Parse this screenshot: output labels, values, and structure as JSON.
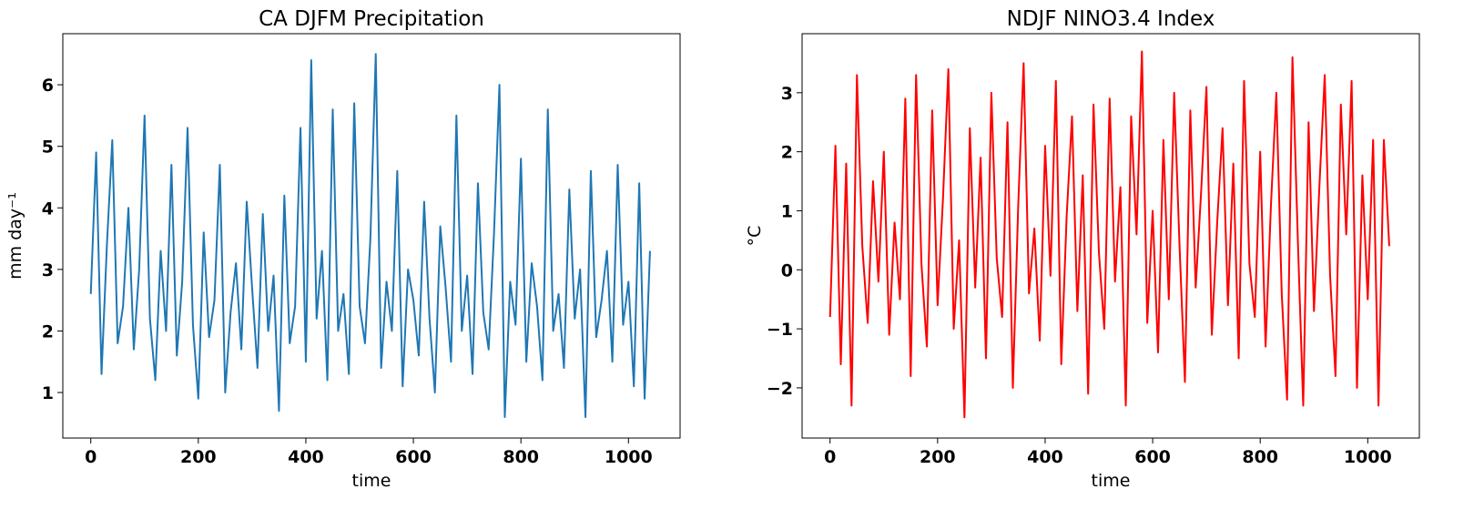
{
  "chart_data": [
    {
      "type": "line",
      "title": "CA DJFM Precipitation",
      "xlabel": "time",
      "ylabel": "mm day⁻¹",
      "x": [
        0,
        10,
        20,
        30,
        40,
        50,
        60,
        70,
        80,
        90,
        100,
        110,
        120,
        130,
        140,
        150,
        160,
        170,
        180,
        190,
        200,
        210,
        220,
        230,
        240,
        250,
        260,
        270,
        280,
        290,
        300,
        310,
        320,
        330,
        340,
        350,
        360,
        370,
        380,
        390,
        400,
        410,
        420,
        430,
        440,
        450,
        460,
        470,
        480,
        490,
        500,
        510,
        520,
        530,
        540,
        550,
        560,
        570,
        580,
        590,
        600,
        610,
        620,
        630,
        640,
        650,
        660,
        670,
        680,
        690,
        700,
        710,
        720,
        730,
        740,
        750,
        760,
        770,
        780,
        790,
        800,
        810,
        820,
        830,
        840,
        850,
        860,
        870,
        880,
        890,
        900,
        910,
        920,
        930,
        940,
        950,
        960,
        970,
        980,
        990,
        1000,
        1010,
        1020,
        1030,
        1040
      ],
      "series": [
        {
          "name": "precipitation",
          "color": "#1f77b4",
          "values": [
            2.6,
            4.9,
            1.3,
            3.4,
            5.1,
            1.8,
            2.4,
            4.0,
            1.7,
            3.0,
            5.5,
            2.2,
            1.2,
            3.3,
            2.0,
            4.7,
            1.6,
            2.8,
            5.3,
            2.1,
            0.9,
            3.6,
            1.9,
            2.5,
            4.7,
            1.0,
            2.3,
            3.1,
            1.7,
            4.1,
            2.7,
            1.4,
            3.9,
            2.0,
            2.9,
            0.7,
            4.2,
            1.8,
            2.4,
            5.3,
            1.5,
            6.4,
            2.2,
            3.3,
            1.2,
            5.6,
            2.0,
            2.6,
            1.3,
            5.7,
            2.4,
            1.8,
            3.5,
            6.5,
            1.4,
            2.8,
            2.0,
            4.6,
            1.1,
            3.0,
            2.5,
            1.6,
            4.1,
            2.2,
            1.0,
            3.7,
            2.7,
            1.5,
            5.5,
            2.0,
            2.9,
            1.3,
            4.4,
            2.3,
            1.7,
            3.6,
            6.0,
            0.6,
            2.8,
            2.1,
            4.8,
            1.5,
            3.1,
            2.4,
            1.2,
            5.6,
            2.0,
            2.6,
            1.4,
            4.3,
            2.2,
            3.0,
            0.6,
            4.6,
            1.9,
            2.5,
            3.3,
            1.5,
            4.7,
            2.1,
            2.8,
            1.1,
            4.4,
            0.9,
            3.3
          ]
        }
      ],
      "xlim": [
        -52,
        1096
      ],
      "xticks": [
        0,
        200,
        400,
        600,
        800,
        1000
      ],
      "ylim": [
        0.26,
        6.83
      ],
      "yticks": [
        1,
        2,
        3,
        4,
        5,
        6
      ]
    },
    {
      "type": "line",
      "title": "NDJF NINO3.4 Index",
      "xlabel": "time",
      "ylabel": "°C",
      "x": [
        0,
        10,
        20,
        30,
        40,
        50,
        60,
        70,
        80,
        90,
        100,
        110,
        120,
        130,
        140,
        150,
        160,
        170,
        180,
        190,
        200,
        210,
        220,
        230,
        240,
        250,
        260,
        270,
        280,
        290,
        300,
        310,
        320,
        330,
        340,
        350,
        360,
        370,
        380,
        390,
        400,
        410,
        420,
        430,
        440,
        450,
        460,
        470,
        480,
        490,
        500,
        510,
        520,
        530,
        540,
        550,
        560,
        570,
        580,
        590,
        600,
        610,
        620,
        630,
        640,
        650,
        660,
        670,
        680,
        690,
        700,
        710,
        720,
        730,
        740,
        750,
        760,
        770,
        780,
        790,
        800,
        810,
        820,
        830,
        840,
        850,
        860,
        870,
        880,
        890,
        900,
        910,
        920,
        930,
        940,
        950,
        960,
        970,
        980,
        990,
        1000,
        1010,
        1020,
        1030,
        1040
      ],
      "series": [
        {
          "name": "nino34",
          "color": "#ff0000",
          "values": [
            -0.8,
            2.1,
            -1.6,
            1.8,
            -2.3,
            3.3,
            0.4,
            -0.9,
            1.5,
            -0.2,
            2.0,
            -1.1,
            0.8,
            -0.5,
            2.9,
            -1.8,
            3.3,
            0.1,
            -1.3,
            2.7,
            -0.6,
            1.2,
            3.4,
            -1.0,
            0.5,
            -2.5,
            2.4,
            -0.3,
            1.9,
            -1.5,
            3.0,
            0.2,
            -0.8,
            2.5,
            -2.0,
            1.1,
            3.5,
            -0.4,
            0.7,
            -1.2,
            2.1,
            -0.1,
            3.2,
            -1.6,
            0.9,
            2.6,
            -0.7,
            1.6,
            -2.1,
            2.8,
            0.3,
            -1.0,
            2.9,
            -0.2,
            1.4,
            -2.3,
            2.6,
            0.6,
            3.7,
            -0.9,
            1.0,
            -1.4,
            2.2,
            -0.5,
            3.0,
            0.4,
            -1.9,
            2.7,
            -0.3,
            1.3,
            3.1,
            -1.1,
            0.8,
            2.4,
            -0.6,
            1.8,
            -1.5,
            3.2,
            0.1,
            -0.8,
            2.0,
            -1.3,
            1.1,
            3.0,
            -0.4,
            -2.2,
            3.6,
            0.5,
            -2.3,
            2.5,
            -0.7,
            1.4,
            3.3,
            -0.1,
            -1.8,
            2.8,
            0.6,
            3.2,
            -2.0,
            1.6,
            -0.5,
            2.2,
            -2.3,
            2.2,
            0.4
          ]
        }
      ],
      "xlim": [
        -52,
        1096
      ],
      "xticks": [
        0,
        200,
        400,
        600,
        800,
        1000
      ],
      "ylim": [
        -2.85,
        4.0
      ],
      "yticks": [
        {
          "value": -2,
          "label": "−2"
        },
        {
          "value": -1,
          "label": "−1"
        },
        0,
        1,
        2,
        3
      ]
    }
  ]
}
